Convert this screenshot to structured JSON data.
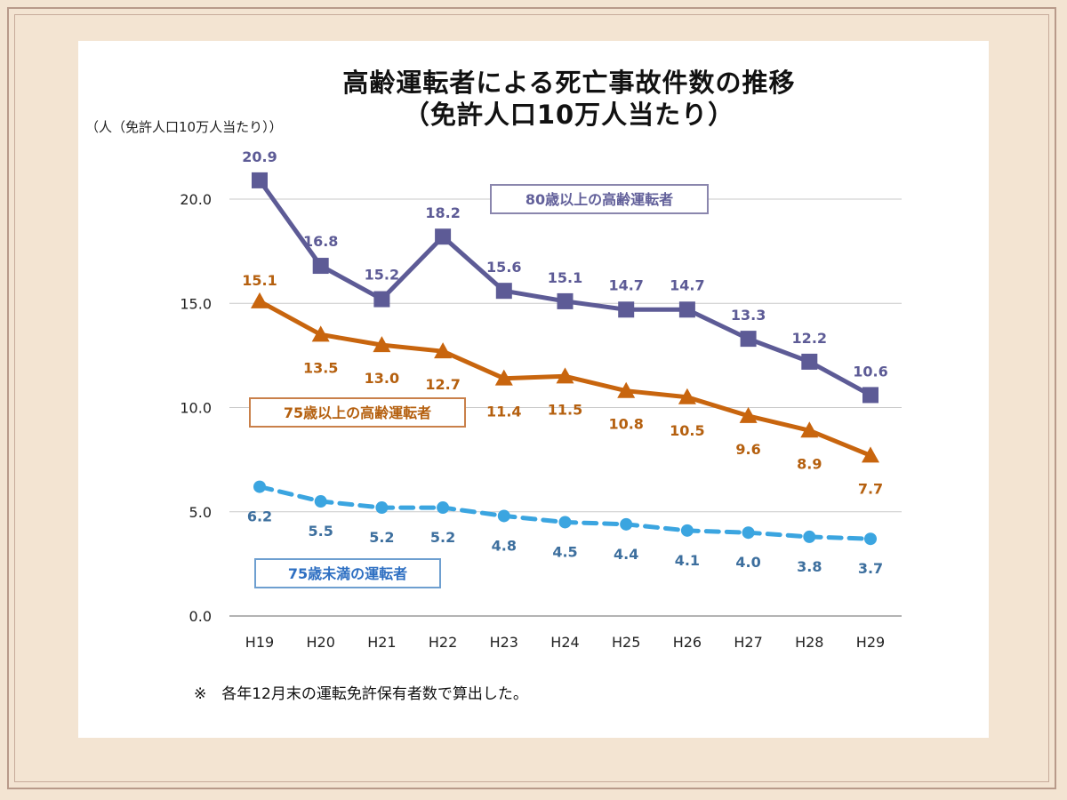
{
  "slide": {
    "title_line1": "高齢運転者による死亡事故件数の推移",
    "title_line2": "（免許人口10万人当たり）",
    "unit_label": "（人（免許人口10万人当たり））",
    "note": "※　各年12月末の運転免許保有者数で算出した。"
  },
  "chart_data": {
    "type": "line",
    "title": "高齢運転者による死亡事故件数の推移（免許人口10万人当たり）",
    "ylabel": "人（免許人口10万人当たり）",
    "xlabel": "",
    "ylim": [
      0,
      20
    ],
    "yticks": [
      0,
      5,
      10,
      15,
      20
    ],
    "ytick_labels": [
      "0.0",
      "5.0",
      "10.0",
      "15.0",
      "20.0"
    ],
    "grid": true,
    "categories": [
      "H19",
      "H20",
      "H21",
      "H22",
      "H23",
      "H24",
      "H25",
      "H26",
      "H27",
      "H28",
      "H29"
    ],
    "series": [
      {
        "name": "80歳以上の高齢運転者",
        "values": [
          20.9,
          16.8,
          15.2,
          18.2,
          15.6,
          15.1,
          14.7,
          14.7,
          13.3,
          12.2,
          10.6
        ],
        "labels": [
          "20.9",
          "16.8",
          "15.2",
          "18.2",
          "15.6",
          "15.1",
          "14.7",
          "14.7",
          "13.3",
          "12.2",
          "10.6"
        ],
        "color": "#5d5b96",
        "label_color": "#5d5b96",
        "marker": "square",
        "line_style": "solid"
      },
      {
        "name": "75歳以上の高齢運転者",
        "values": [
          15.1,
          13.5,
          13.0,
          12.7,
          11.4,
          11.5,
          10.8,
          10.5,
          9.6,
          8.9,
          7.7
        ],
        "labels": [
          "15.1",
          "13.5",
          "13.0",
          "12.7",
          "11.4",
          "11.5",
          "10.8",
          "10.5",
          "9.6",
          "8.9",
          "7.7"
        ],
        "color": "#c8650e",
        "label_color": "#b5600f",
        "marker": "triangle",
        "line_style": "solid"
      },
      {
        "name": "75歳未満の運転者",
        "values": [
          6.2,
          5.5,
          5.2,
          5.2,
          4.8,
          4.5,
          4.4,
          4.1,
          4.0,
          3.8,
          3.7
        ],
        "labels": [
          "6.2",
          "5.5",
          "5.2",
          "5.2",
          "4.8",
          "4.5",
          "4.4",
          "4.1",
          "4.0",
          "3.8",
          "3.7"
        ],
        "color": "#3ba5e0",
        "label_color": "#3d6f9e",
        "marker": "circle",
        "line_style": "dashed"
      }
    ]
  }
}
